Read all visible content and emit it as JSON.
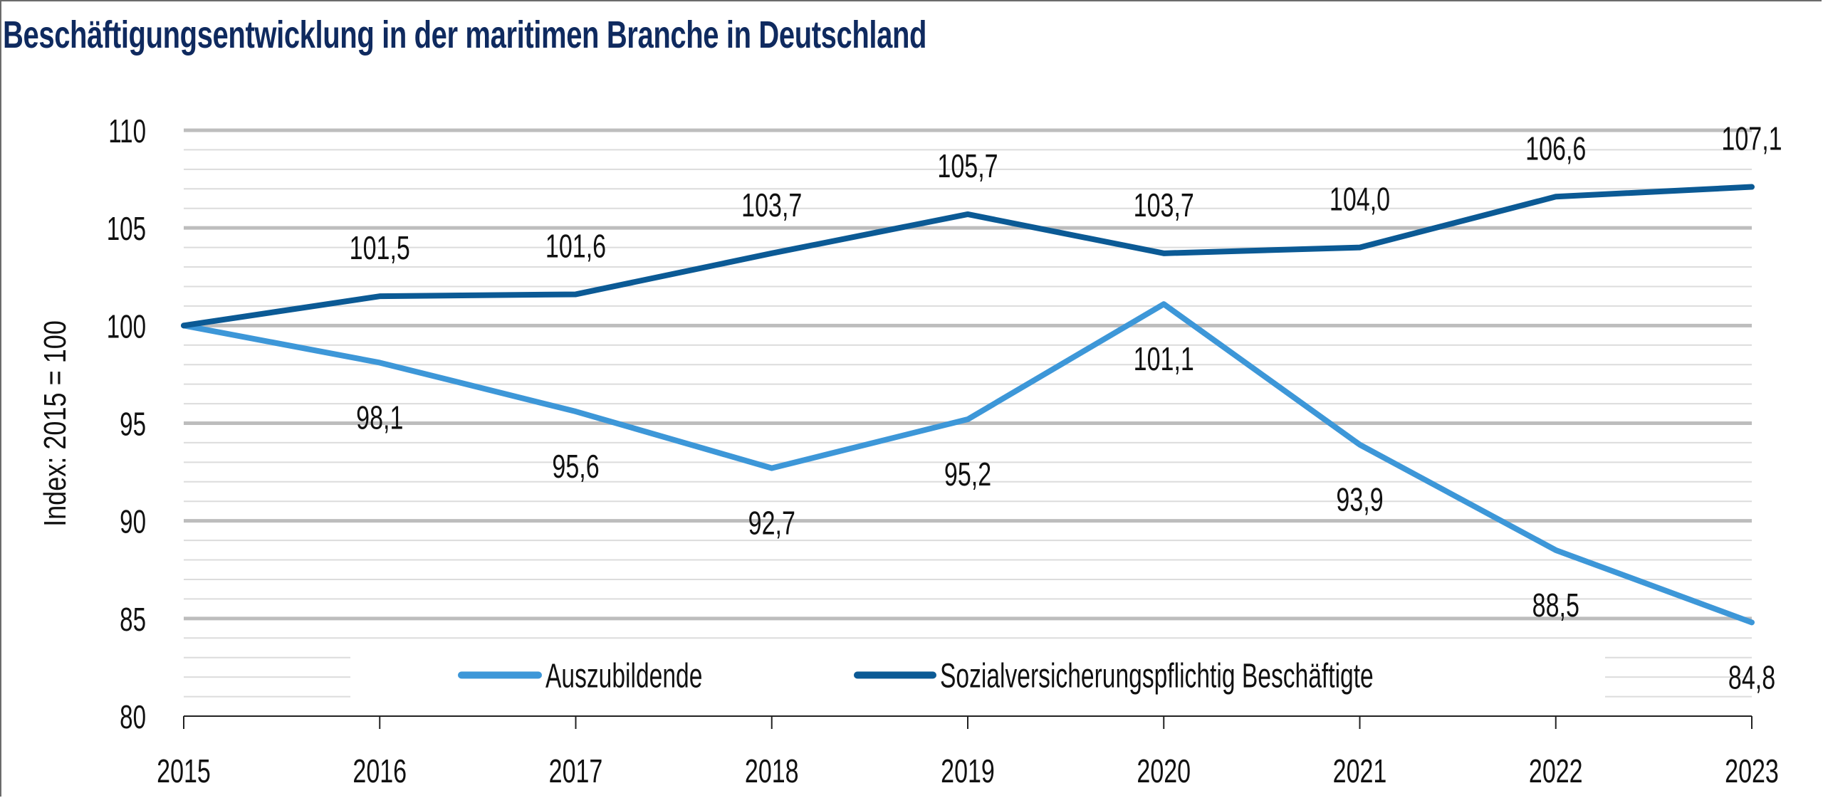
{
  "chart_data": {
    "type": "line",
    "title": "Beschäftigungsentwicklung in der maritimen Branche in Deutschland",
    "xlabel": "",
    "ylabel": "Index: 2015 = 100",
    "x": [
      "2015",
      "2016",
      "2017",
      "2018",
      "2019",
      "2020",
      "2021",
      "2022",
      "2023"
    ],
    "ylim": [
      80,
      110
    ],
    "yticks": [
      80,
      85,
      90,
      95,
      100,
      105,
      110
    ],
    "minor_grid_step": 1,
    "grid": true,
    "legend_position": "bottom-center",
    "decimal_separator": ",",
    "series": [
      {
        "name": "Auszubildende",
        "color": "#3d97d8",
        "values": [
          100,
          98.1,
          95.6,
          92.7,
          95.2,
          101.1,
          93.9,
          88.5,
          84.8
        ],
        "labels": [
          "",
          "98,1",
          "95,6",
          "92,7",
          "95,2",
          "101,1",
          "93,9",
          "88,5",
          "84,8"
        ],
        "label_side": "below"
      },
      {
        "name": "Sozialversicherungspflichtig Beschäftigte",
        "color": "#0b5a95",
        "values": [
          100,
          101.5,
          101.6,
          103.7,
          105.7,
          103.7,
          104.0,
          106.6,
          107.1
        ],
        "labels": [
          "",
          "101,5",
          "101,6",
          "103,7",
          "105,7",
          "103,7",
          "104,0",
          "106,6",
          "107,1"
        ],
        "label_side": "above"
      }
    ]
  }
}
